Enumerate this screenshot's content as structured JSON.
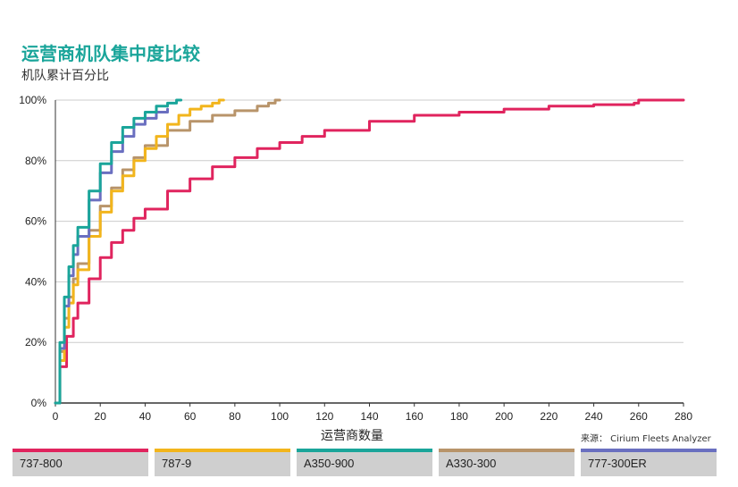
{
  "colors": {
    "737-800": "#e0245e",
    "787-9": "#f2b51c",
    "A350-900": "#1aa59a",
    "A330-300": "#b8946a",
    "777-300ER": "#6a6fc0",
    "title": "#1aa59a",
    "grid": "#cccccc"
  },
  "source": "来源： Cirium Fleets Analyzer",
  "chart_data": {
    "type": "line",
    "title": "运营商机队集中度比较",
    "subtitle": "机队累计百分比",
    "xlabel": "运营商数量",
    "ylabel": "",
    "xlim": [
      0,
      280
    ],
    "ylim": [
      0,
      100
    ],
    "x_ticks": [
      "0",
      "20",
      "40",
      "60",
      "80",
      "100",
      "120",
      "140",
      "160",
      "180",
      "200",
      "220",
      "240",
      "260",
      "280"
    ],
    "y_ticks": [
      "0%",
      "20%",
      "40%",
      "60%",
      "80%",
      "100%"
    ],
    "grid": "horizontal",
    "legend": "bottom",
    "series": [
      {
        "name": "737-800",
        "x": [
          0,
          2,
          5,
          8,
          10,
          15,
          20,
          25,
          30,
          35,
          40,
          50,
          60,
          70,
          80,
          90,
          100,
          110,
          120,
          140,
          160,
          180,
          200,
          220,
          240,
          258,
          260,
          280
        ],
        "y": [
          0,
          12,
          22,
          28,
          33,
          41,
          48,
          53,
          57,
          61,
          64,
          70,
          74,
          78,
          81,
          84,
          86,
          88,
          90,
          93,
          95,
          96,
          97,
          98,
          98.5,
          99,
          100,
          100
        ]
      },
      {
        "name": "787-9",
        "x": [
          0,
          2,
          4,
          6,
          8,
          10,
          15,
          20,
          25,
          30,
          35,
          40,
          45,
          50,
          55,
          60,
          65,
          70,
          73,
          75
        ],
        "y": [
          0,
          14,
          25,
          33,
          39,
          44,
          55,
          63,
          70,
          75,
          80,
          84,
          88,
          92,
          95,
          97,
          98,
          99,
          100,
          100
        ]
      },
      {
        "name": "A350-900",
        "x": [
          0,
          2,
          4,
          6,
          8,
          10,
          15,
          20,
          25,
          30,
          35,
          40,
          45,
          50,
          54,
          56
        ],
        "y": [
          0,
          20,
          35,
          45,
          52,
          58,
          70,
          79,
          86,
          91,
          94,
          96,
          98,
          99,
          100,
          100
        ]
      },
      {
        "name": "A330-300",
        "x": [
          0,
          2,
          4,
          6,
          8,
          10,
          15,
          20,
          25,
          30,
          35,
          40,
          50,
          60,
          70,
          80,
          90,
          95,
          98,
          100
        ],
        "y": [
          0,
          17,
          28,
          35,
          41,
          46,
          57,
          65,
          71,
          77,
          81,
          85,
          90,
          93,
          95,
          96.5,
          98,
          99,
          100,
          100
        ]
      },
      {
        "name": "777-300ER",
        "x": [
          0,
          2,
          4,
          6,
          8,
          10,
          15,
          20,
          25,
          30,
          35,
          40,
          45,
          50
        ],
        "y": [
          0,
          18,
          32,
          42,
          49,
          55,
          67,
          76,
          83,
          88,
          92,
          94,
          96,
          97
        ]
      }
    ]
  }
}
